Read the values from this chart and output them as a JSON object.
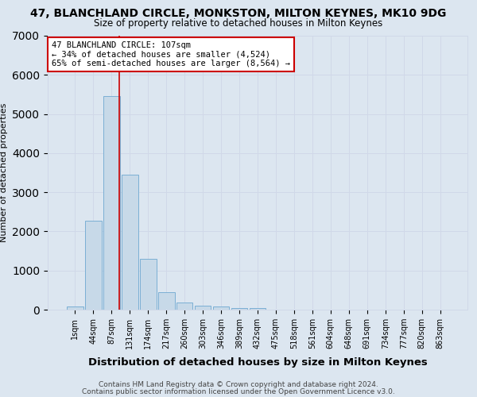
{
  "title": "47, BLANCHLAND CIRCLE, MONKSTON, MILTON KEYNES, MK10 9DG",
  "subtitle": "Size of property relative to detached houses in Milton Keynes",
  "xlabel": "Distribution of detached houses by size in Milton Keynes",
  "ylabel": "Number of detached properties",
  "footnote1": "Contains HM Land Registry data © Crown copyright and database right 2024.",
  "footnote2": "Contains public sector information licensed under the Open Government Licence v3.0.",
  "bar_labels": [
    "1sqm",
    "44sqm",
    "87sqm",
    "131sqm",
    "174sqm",
    "217sqm",
    "260sqm",
    "303sqm",
    "346sqm",
    "389sqm",
    "432sqm",
    "475sqm",
    "518sqm",
    "561sqm",
    "604sqm",
    "648sqm",
    "691sqm",
    "734sqm",
    "777sqm",
    "820sqm",
    "863sqm"
  ],
  "bar_values": [
    75,
    2275,
    5450,
    3450,
    1300,
    450,
    175,
    100,
    75,
    50,
    40,
    0,
    0,
    0,
    0,
    0,
    0,
    0,
    0,
    0,
    0
  ],
  "bar_color": "#c7d9e8",
  "bar_edge_color": "#7bafd4",
  "ylim": [
    0,
    7000
  ],
  "red_line_x": 2.43,
  "annotation_text": "47 BLANCHLAND CIRCLE: 107sqm\n← 34% of detached houses are smaller (4,524)\n65% of semi-detached houses are larger (8,564) →",
  "annotation_box_color": "#ffffff",
  "annotation_border_color": "#cc0000",
  "red_line_color": "#cc0000",
  "grid_color": "#d0d8e8",
  "background_color": "#dce6f0",
  "title_fontsize": 10,
  "subtitle_fontsize": 8.5,
  "xlabel_fontsize": 9.5,
  "ylabel_fontsize": 8,
  "annotation_fontsize": 7.5,
  "tick_fontsize": 7,
  "footnote_fontsize": 6.5
}
